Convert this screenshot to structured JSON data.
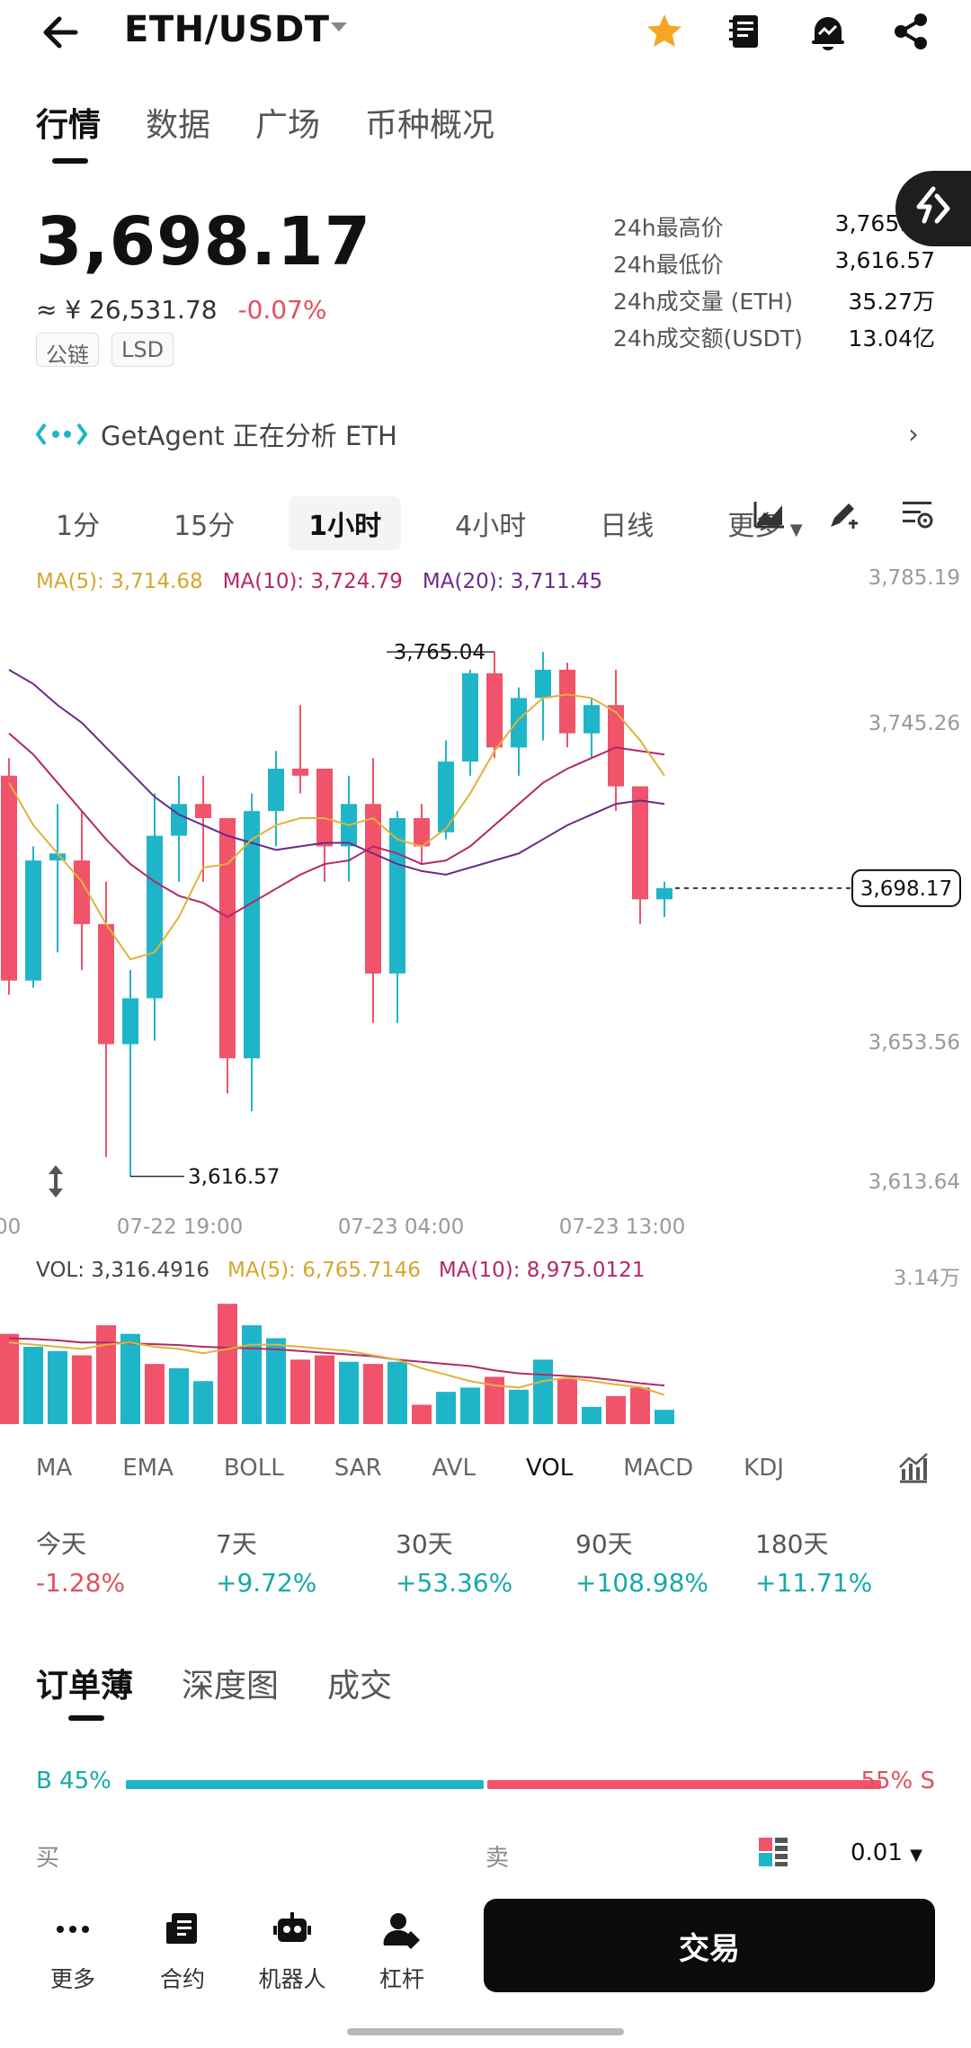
{
  "header": {
    "pair": "ETH/USDT",
    "icons": [
      "back-arrow-icon",
      "star-icon",
      "document-icon",
      "alert-bell-icon",
      "share-icon"
    ],
    "accent_star": "#f5a623"
  },
  "tabs": [
    "行情",
    "数据",
    "广场",
    "币种概况"
  ],
  "ticker": {
    "price": "3,698.17",
    "cny": "≈ ¥ 26,531.78",
    "change": "-0.07%",
    "badges": [
      "公链",
      "LSD"
    ]
  },
  "stats": [
    {
      "label": "24h最高价",
      "value": "3,765.04"
    },
    {
      "label": "24h最低价",
      "value": "3,616.57"
    },
    {
      "label": "24h成交量 (ETH)",
      "value": "35.27万"
    },
    {
      "label": "24h成交额(USDT)",
      "value": "13.04亿"
    }
  ],
  "agent": {
    "text": "GetAgent 正在分析 ETH"
  },
  "intervals": [
    "1分",
    "15分",
    "1小时",
    "4小时",
    "日线",
    "更多"
  ],
  "ma_legend": {
    "ma5": "MA(5): 3,714.68",
    "ma10": "MA(10): 3,724.79",
    "ma20": "MA(20): 3,711.45"
  },
  "chart_data": {
    "type": "candlestick",
    "price_axis_labels": [
      "3,785.19",
      "3,745.26",
      "3,653.56",
      "3,613.64"
    ],
    "ylim": [
      3613.64,
      3785.19
    ],
    "time_labels": [
      "00",
      "07-22 19:00",
      "07-23 04:00",
      "07-23 13:00"
    ],
    "last_price_label": "3,698.17",
    "high_marker": "3,765.04",
    "low_marker": "3,616.57",
    "colors": {
      "up": "#1fb5c8",
      "down": "#f0536a",
      "ma5": "#e0b23a",
      "ma10": "#b3286a",
      "ma20": "#6b2a8a"
    },
    "candles": [
      {
        "o": 3730,
        "h": 3735,
        "c": 3672,
        "l": 3668
      },
      {
        "o": 3672,
        "h": 3710,
        "c": 3706,
        "l": 3670
      },
      {
        "o": 3706,
        "h": 3722,
        "c": 3708,
        "l": 3680
      },
      {
        "o": 3706,
        "h": 3720,
        "c": 3688,
        "l": 3675
      },
      {
        "o": 3688,
        "h": 3700,
        "c": 3654,
        "l": 3622
      },
      {
        "o": 3654,
        "h": 3675,
        "c": 3667,
        "l": 3616.57
      },
      {
        "o": 3667,
        "h": 3725,
        "c": 3713,
        "l": 3655
      },
      {
        "o": 3713,
        "h": 3730,
        "c": 3722,
        "l": 3700
      },
      {
        "o": 3722,
        "h": 3730,
        "c": 3718,
        "l": 3700
      },
      {
        "o": 3718,
        "h": 3718,
        "c": 3650,
        "l": 3640
      },
      {
        "o": 3650,
        "h": 3725,
        "c": 3720,
        "l": 3635
      },
      {
        "o": 3720,
        "h": 3737,
        "c": 3732,
        "l": 3710
      },
      {
        "o": 3732,
        "h": 3750,
        "c": 3730,
        "l": 3725
      },
      {
        "o": 3732,
        "h": 3732,
        "c": 3710,
        "l": 3700
      },
      {
        "o": 3710,
        "h": 3730,
        "c": 3722,
        "l": 3700
      },
      {
        "o": 3722,
        "h": 3735,
        "c": 3674,
        "l": 3660
      },
      {
        "o": 3674,
        "h": 3720,
        "c": 3718,
        "l": 3660
      },
      {
        "o": 3718,
        "h": 3722,
        "c": 3710,
        "l": 3705
      },
      {
        "o": 3714,
        "h": 3740,
        "c": 3734,
        "l": 3712
      },
      {
        "o": 3734,
        "h": 3760,
        "c": 3759,
        "l": 3730
      },
      {
        "o": 3759,
        "h": 3765.04,
        "c": 3738,
        "l": 3735
      },
      {
        "o": 3738,
        "h": 3755,
        "c": 3752,
        "l": 3730
      },
      {
        "o": 3752,
        "h": 3765.04,
        "c": 3760,
        "l": 3740
      },
      {
        "o": 3760,
        "h": 3762,
        "c": 3742,
        "l": 3738
      },
      {
        "o": 3742,
        "h": 3752,
        "c": 3750,
        "l": 3735
      },
      {
        "o": 3750,
        "h": 3760,
        "c": 3727,
        "l": 3720
      },
      {
        "o": 3727,
        "h": 3727,
        "c": 3695,
        "l": 3688
      },
      {
        "o": 3695,
        "h": 3700,
        "c": 3698.17,
        "l": 3690
      }
    ],
    "ma5": [
      3728,
      3716,
      3708,
      3700,
      3688,
      3678,
      3680,
      3690,
      3704,
      3705,
      3712,
      3716,
      3718,
      3718,
      3716,
      3718,
      3712,
      3710,
      3715,
      3725,
      3737,
      3746,
      3752,
      3753,
      3752,
      3748,
      3740,
      3730
    ],
    "ma10": [
      3742,
      3736,
      3728,
      3720,
      3712,
      3705,
      3700,
      3696,
      3694,
      3690,
      3694,
      3698,
      3702,
      3705,
      3706,
      3710,
      3708,
      3705,
      3706,
      3710,
      3716,
      3722,
      3728,
      3732,
      3735,
      3738,
      3737,
      3736
    ],
    "ma20": [
      3760,
      3756,
      3750,
      3745,
      3738,
      3731,
      3724,
      3719,
      3716,
      3713,
      3711,
      3709,
      3710,
      3711,
      3711,
      3708,
      3705,
      3703,
      3702,
      3704,
      3706,
      3708,
      3712,
      3716,
      3719,
      3722,
      3723,
      3722
    ]
  },
  "volume": {
    "legend_vol": "VOL: 3,316.4916",
    "legend_ma5": "MA(5): 6,765.7146",
    "legend_ma10": "MA(10): 8,975.0121",
    "axis_max_label": "3.14万",
    "ylim": [
      0,
      31400
    ],
    "bars": [
      {
        "v": 21000,
        "up": false
      },
      {
        "v": 18000,
        "up": true
      },
      {
        "v": 17000,
        "up": true
      },
      {
        "v": 16000,
        "up": false
      },
      {
        "v": 23000,
        "up": false
      },
      {
        "v": 21000,
        "up": true
      },
      {
        "v": 14000,
        "up": false
      },
      {
        "v": 13000,
        "up": true
      },
      {
        "v": 10000,
        "up": true
      },
      {
        "v": 28000,
        "up": false
      },
      {
        "v": 23000,
        "up": true
      },
      {
        "v": 20000,
        "up": true
      },
      {
        "v": 15000,
        "up": false
      },
      {
        "v": 16000,
        "up": false
      },
      {
        "v": 14500,
        "up": true
      },
      {
        "v": 14000,
        "up": false
      },
      {
        "v": 14500,
        "up": true
      },
      {
        "v": 4500,
        "up": false
      },
      {
        "v": 7500,
        "up": true
      },
      {
        "v": 8500,
        "up": true
      },
      {
        "v": 11000,
        "up": false
      },
      {
        "v": 8000,
        "up": true
      },
      {
        "v": 15000,
        "up": true
      },
      {
        "v": 10500,
        "up": false
      },
      {
        "v": 4000,
        "up": true
      },
      {
        "v": 6500,
        "up": false
      },
      {
        "v": 8500,
        "up": false
      },
      {
        "v": 3316,
        "up": true
      }
    ],
    "ma5": [
      19000,
      18500,
      18000,
      17500,
      18500,
      19000,
      18000,
      17500,
      16500,
      17500,
      18500,
      18500,
      18000,
      17500,
      17000,
      16000,
      15000,
      13000,
      11500,
      10000,
      9000,
      8500,
      10000,
      10800,
      10000,
      9200,
      8600,
      6800
    ],
    "ma10": [
      20000,
      19800,
      19500,
      19000,
      19000,
      18800,
      18600,
      18400,
      18000,
      17800,
      17600,
      17400,
      17000,
      16600,
      16200,
      15800,
      15000,
      14500,
      14000,
      13500,
      12500,
      11800,
      11500,
      11200,
      10800,
      10200,
      9500,
      8975
    ]
  },
  "indicators": [
    "MA",
    "EMA",
    "BOLL",
    "SAR",
    "AVL",
    "VOL",
    "MACD",
    "KDJ"
  ],
  "active_indicator": "VOL",
  "performance": [
    {
      "label": "今天",
      "value": "-1.28%"
    },
    {
      "label": "7天",
      "value": "+9.72%"
    },
    {
      "label": "30天",
      "value": "+53.36%"
    },
    {
      "label": "90天",
      "value": "+108.98%"
    },
    {
      "label": "180天",
      "value": "+11.71%"
    }
  ],
  "orderbook": {
    "tabs": [
      "订单薄",
      "深度图",
      "成交"
    ],
    "buy_ratio": "B 45%",
    "sell_ratio": "55% S",
    "buy_fraction": 0.45,
    "buy_label": "买",
    "sell_label": "卖",
    "precision": "0.01"
  },
  "bottom_nav": [
    {
      "label": "更多",
      "icon": "more-dots-icon"
    },
    {
      "label": "合约",
      "icon": "contract-icon"
    },
    {
      "label": "机器人",
      "icon": "robot-icon"
    },
    {
      "label": "杠杆",
      "icon": "leverage-icon"
    }
  ],
  "trade_button": "交易"
}
